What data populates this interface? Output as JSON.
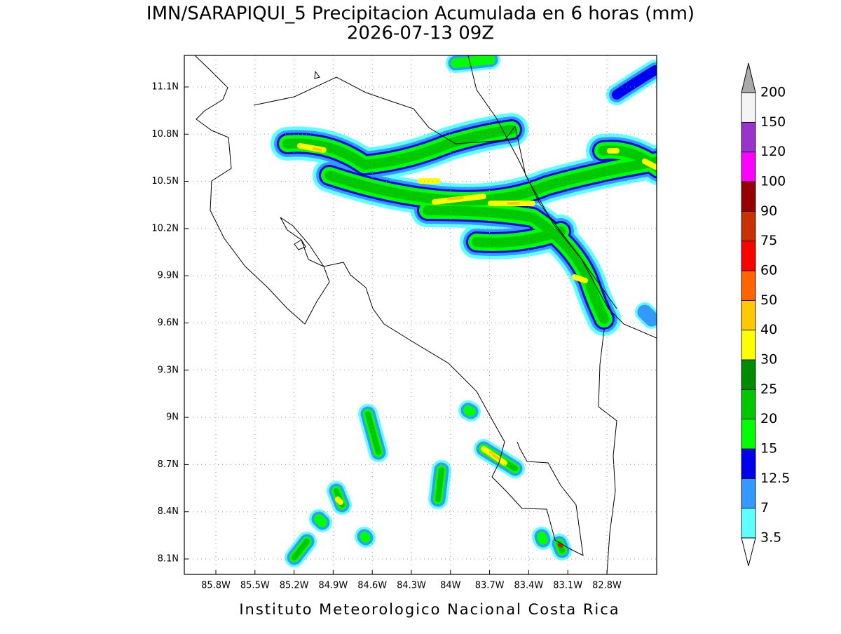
{
  "title": "IMN/SARAPIQUI_5 Precipitacion Acumulada en 6 horas (mm)",
  "subtitle": "2026-07-13 09Z",
  "map": {
    "xticks": [
      "85.8W",
      "85.5W",
      "85.2W",
      "84.9W",
      "84.6W",
      "84.3W",
      "84W",
      "83.7W",
      "83.4W",
      "83.1W",
      "82.8W"
    ],
    "yticks": [
      "11.1N",
      "10.8N",
      "10.5N",
      "10.2N",
      "9.9N",
      "9.6N",
      "9.3N",
      "9N",
      "8.7N",
      "8.4N",
      "8.1N"
    ]
  },
  "colorbar": {
    "levels": [
      "3.5",
      "7",
      "12.5",
      "15",
      "20",
      "25",
      "30",
      "40",
      "50",
      "60",
      "75",
      "90",
      "100",
      "120",
      "150",
      "200"
    ],
    "colors": [
      "#60ffff",
      "#3399ff",
      "#0000ee",
      "#00ff00",
      "#00c800",
      "#008c00",
      "#ffff00",
      "#ffc800",
      "#ff6400",
      "#ff0000",
      "#c83200",
      "#960000",
      "#ff00ff",
      "#9933cc",
      "#f4f4f4"
    ],
    "under_color": "#ffffff",
    "over_color": "#aaaaaa"
  },
  "footer": "Instituto Meteorologico Nacional Costa Rica"
}
